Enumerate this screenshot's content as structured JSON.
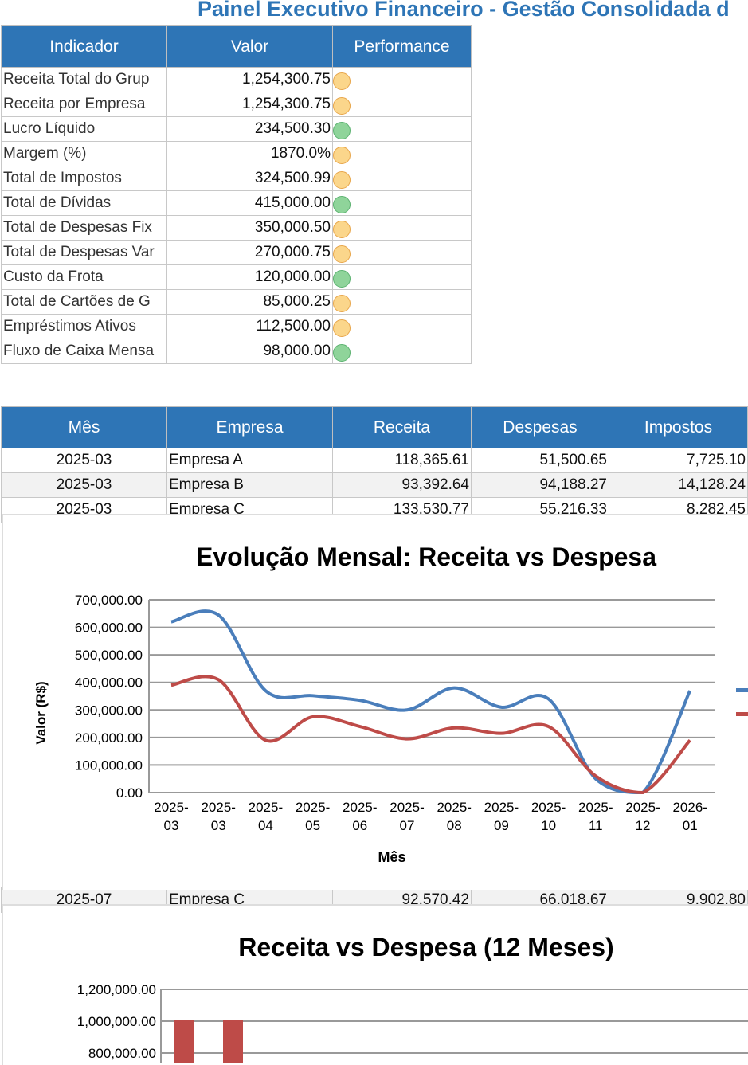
{
  "title": "Painel Executivo Financeiro - Gestão Consolidada d",
  "kpi_table": {
    "headers": [
      "Indicador",
      "Valor",
      "Performance"
    ],
    "rows": [
      {
        "indicador": "Receita Total do Grup",
        "valor": "1,254,300.75",
        "status": "yellow"
      },
      {
        "indicador": "Receita por Empresa",
        "valor": "1,254,300.75",
        "status": "yellow"
      },
      {
        "indicador": "Lucro Líquido",
        "valor": "234,500.30",
        "status": "green"
      },
      {
        "indicador": "Margem (%)",
        "valor": "1870.0%",
        "status": "yellow"
      },
      {
        "indicador": "Total de Impostos",
        "valor": "324,500.99",
        "status": "yellow"
      },
      {
        "indicador": "Total de Dívidas",
        "valor": "415,000.00",
        "status": "green"
      },
      {
        "indicador": "Total de Despesas Fix",
        "valor": "350,000.50",
        "status": "yellow"
      },
      {
        "indicador": "Total de Despesas Var",
        "valor": "270,000.75",
        "status": "yellow"
      },
      {
        "indicador": "Custo da Frota",
        "valor": "120,000.00",
        "status": "green"
      },
      {
        "indicador": "Total de Cartões de G",
        "valor": "85,000.25",
        "status": "yellow"
      },
      {
        "indicador": "Empréstimos Ativos",
        "valor": "112,500.00",
        "status": "yellow"
      },
      {
        "indicador": "Fluxo de Caixa Mensa",
        "valor": "98,000.00",
        "status": "green"
      }
    ]
  },
  "status_colors": {
    "yellow": "#fbd68b",
    "green": "#8fd49a"
  },
  "monthly_table": {
    "headers": [
      "Mês",
      "Empresa",
      "Receita",
      "Despesas",
      "Impostos"
    ],
    "rows": [
      [
        "2025-03",
        "Empresa A",
        "118,365.61",
        "51,500.65",
        "7,725.10"
      ],
      [
        "2025-03",
        "Empresa B",
        "93,392.64",
        "94,188.27",
        "14,128.24"
      ],
      [
        "2025-03",
        "Empresa C",
        "133,530.77",
        "55,216.33",
        "8,282.45"
      ]
    ],
    "row_after_chart": [
      "2025-07",
      "Empresa C",
      "92,570.42",
      "66,018.67",
      "9,902.80"
    ]
  },
  "chart_data": [
    {
      "type": "line",
      "title": "Evolução Mensal: Receita vs Despesa",
      "xlabel": "Mês",
      "ylabel": "Valor (R$)",
      "categories": [
        "2025-03",
        "2025-03",
        "2025-04",
        "2025-05",
        "2025-06",
        "2025-07",
        "2025-08",
        "2025-09",
        "2025-10",
        "2025-11",
        "2025-12",
        "2026-01"
      ],
      "ylim": [
        0,
        700000
      ],
      "yticks": [
        "0.00",
        "100,000.00",
        "200,000.00",
        "300,000.00",
        "400,000.00",
        "500,000.00",
        "600,000.00",
        "700,000.00"
      ],
      "grid": true,
      "legend": "right",
      "smooth": true,
      "series": [
        {
          "color": "#4a7ebb",
          "values": [
            620000,
            645000,
            370000,
            352000,
            335000,
            300000,
            380000,
            310000,
            340000,
            50000,
            0,
            370000
          ]
        },
        {
          "color": "#be4b48",
          "values": [
            390000,
            410000,
            190000,
            275000,
            240000,
            195000,
            235000,
            215000,
            240000,
            60000,
            0,
            190000
          ]
        }
      ]
    },
    {
      "type": "bar",
      "title": "Receita vs Despesa (12 Meses)",
      "ylim": [
        800000,
        1200000
      ],
      "yticks": [
        "800,000.00",
        "1,000,000.00",
        "1,200,000.00"
      ],
      "grid": true,
      "series": [
        {
          "color": "#be4b48",
          "values": [
            1010000,
            1010000
          ]
        }
      ]
    }
  ]
}
